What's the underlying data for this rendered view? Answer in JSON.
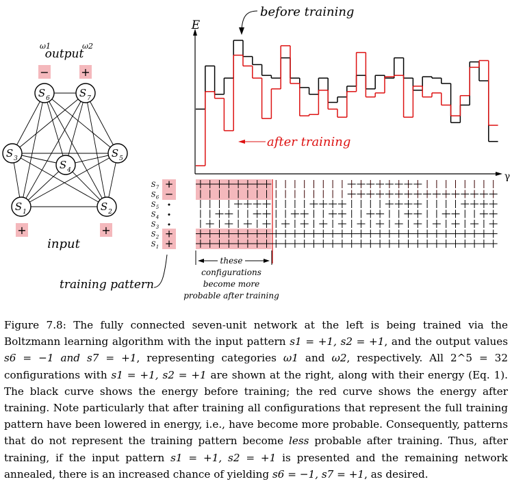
{
  "network": {
    "output_label": "output",
    "input_label": "input",
    "training_pattern_label": "training pattern",
    "omega1": "ω1",
    "omega2": "ω2",
    "node_labels": {
      "s1": "S1",
      "s2": "S2",
      "s3": "S3",
      "s4": "S4",
      "s5": "S5",
      "s6": "S6",
      "s7": "S7"
    },
    "output_signs": {
      "s6": "−",
      "s7": "+"
    },
    "input_signs": {
      "s1": "+",
      "s2": "+"
    }
  },
  "chart": {
    "y_axis_label": "E",
    "x_axis_label": "γ",
    "before_label": "before training",
    "after_label": "after training",
    "colors": {
      "before": "#000000",
      "after": "#dd1111",
      "highlight": "#f4b8bc"
    },
    "bracket_text": [
      "these",
      "configurations",
      "become more",
      "probable after training"
    ]
  },
  "chart_data": {
    "type": "line",
    "step": true,
    "n_configurations": 32,
    "x": [
      1,
      2,
      3,
      4,
      5,
      6,
      7,
      8,
      9,
      10,
      11,
      12,
      13,
      14,
      15,
      16,
      17,
      18,
      19,
      20,
      21,
      22,
      23,
      24,
      25,
      26,
      27,
      28,
      29,
      30,
      31,
      32
    ],
    "series": [
      {
        "name": "before training",
        "values": [
          0.47,
          0.79,
          0.58,
          0.7,
          0.98,
          0.86,
          0.8,
          0.72,
          0.7,
          0.85,
          0.7,
          0.63,
          0.58,
          0.7,
          0.52,
          0.56,
          0.64,
          0.72,
          0.62,
          0.72,
          0.7,
          0.85,
          0.7,
          0.61,
          0.71,
          0.7,
          0.66,
          0.37,
          0.5,
          0.82,
          0.68,
          0.23
        ]
      },
      {
        "name": "after training",
        "values": [
          0.05,
          0.6,
          0.55,
          0.31,
          0.87,
          0.79,
          0.7,
          0.4,
          0.62,
          0.94,
          0.66,
          0.42,
          0.43,
          0.61,
          0.47,
          0.41,
          0.6,
          0.89,
          0.56,
          0.59,
          0.71,
          0.72,
          0.41,
          0.64,
          0.56,
          0.59,
          0.5,
          0.42,
          0.57,
          0.78,
          0.83,
          0.35
        ]
      }
    ],
    "highlighted_range": [
      1,
      8
    ],
    "configuration_rows": {
      "row_labels": [
        "S7",
        "S6",
        "S5",
        "S4",
        "S3",
        "S2",
        "S1"
      ],
      "training_pattern": [
        "+",
        "−",
        "•",
        "•",
        "•",
        "+",
        "+"
      ]
    }
  },
  "caption": {
    "figure": "Figure 7.8:",
    "text_parts": [
      "The fully connected seven-unit network at the left is being trained via the Boltzmann learning algorithm with the input pattern ",
      ", and the output values ",
      ", representing categories ",
      " and ",
      ", respectively. All ",
      " configurations with ",
      " are shown at the right, along with their energy (Eq. 1). The black curve shows the energy before training; the red curve shows the energy after training. Note particularly that after training all configurations that represent the full training pattern have been lowered in energy, i.e., have become more probable. Consequently, patterns that do not represent the training pattern become ",
      "less",
      " probable after training. Thus, after training, if the input pattern ",
      " is presented and the remaining network annealed, there is an increased chance of yielding ",
      ", as desired."
    ],
    "math": {
      "input_pattern": "s1 = +1, s2 = +1",
      "output_values": "s6 = −1 and s7 = +1",
      "categories": [
        "ω1",
        "ω2"
      ],
      "count_eq": "2^5 = 32",
      "cond": "s1 = +1, s2 = +1",
      "yield": "s6 = −1, s7 = +1"
    }
  }
}
